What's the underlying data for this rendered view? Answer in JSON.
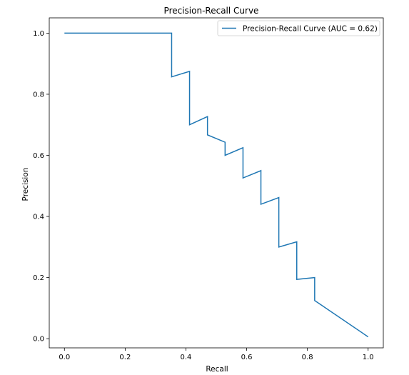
{
  "chart_data": {
    "type": "line",
    "title": "Precision-Recall Curve",
    "xlabel": "Recall",
    "ylabel": "Precision",
    "xlim": [
      -0.05,
      1.05
    ],
    "ylim": [
      -0.03,
      1.05
    ],
    "xticks": [
      {
        "value": 0.0,
        "label": "0.0"
      },
      {
        "value": 0.2,
        "label": "0.2"
      },
      {
        "value": 0.4,
        "label": "0.4"
      },
      {
        "value": 0.6,
        "label": "0.6"
      },
      {
        "value": 0.8,
        "label": "0.8"
      },
      {
        "value": 1.0,
        "label": "1.0"
      }
    ],
    "yticks": [
      {
        "value": 0.0,
        "label": "0.0"
      },
      {
        "value": 0.2,
        "label": "0.2"
      },
      {
        "value": 0.4,
        "label": "0.4"
      },
      {
        "value": 0.6,
        "label": "0.6"
      },
      {
        "value": 0.8,
        "label": "0.8"
      },
      {
        "value": 1.0,
        "label": "1.0"
      }
    ],
    "grid": false,
    "legend_position": "top-right",
    "series": [
      {
        "name": "Precision-Recall Curve (AUC = 0.62)",
        "color": "#1f77b4",
        "x": [
          0.0,
          0.353,
          0.353,
          0.412,
          0.412,
          0.471,
          0.471,
          0.529,
          0.529,
          0.588,
          0.588,
          0.647,
          0.647,
          0.706,
          0.706,
          0.765,
          0.765,
          0.824,
          0.824,
          1.0
        ],
        "y": [
          1.0,
          1.0,
          0.857,
          0.875,
          0.7,
          0.727,
          0.667,
          0.643,
          0.6,
          0.625,
          0.526,
          0.55,
          0.44,
          0.462,
          0.3,
          0.317,
          0.194,
          0.2,
          0.125,
          0.006
        ]
      }
    ]
  }
}
